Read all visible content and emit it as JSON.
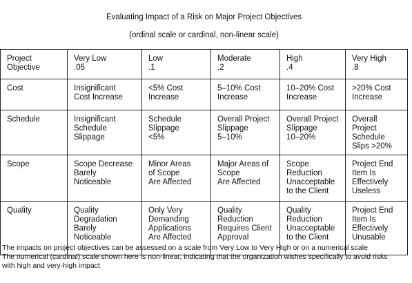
{
  "table": {
    "title": "Evaluating Impact of a Risk on Major Project Objectives",
    "subtitle": "(ordinal scale or cardinal, non-linear scale)",
    "header": [
      "Project\nObjective",
      "Very Low\n.05",
      "Low\n.1",
      "Moderate\n.2",
      "High\n.4",
      "Very High\n.8"
    ],
    "rows": [
      [
        "Cost",
        "Insignificant\nCost Increase",
        "<5% Cost\nIncrease",
        "5–10% Cost\nIncrease",
        "10–20% Cost\nIncrease",
        ">20% Cost\nIncrease"
      ],
      [
        "Schedule",
        "Insignificant\nSchedule\nSlippage",
        "Schedule\nSlippage\n<5%",
        "Overall Project\nSlippage\n5–10%",
        "Overall Project\nSlippage\n10–20%",
        "Overall\nProject\nSchedule\nSlips >20%"
      ],
      [
        "Scope",
        "Scope Decrease\nBarely\nNoticeable",
        "Minor Areas\nof Scope\nAre Affected",
        "Major Areas of\nScope\nAre Affected",
        "Scope\nReduction\nUnacceptable\nto the Client",
        "Project End\nItem Is\nEffectively\nUseless"
      ],
      [
        "Quality",
        "Quality\nDegradation\nBarely\nNoticeable",
        "Only Very\nDemanding\nApplications\nAre Affected",
        "Quality\nReduction\nRequires Client\nApproval",
        "Quality\nReduction\nUnacceptable\nto the Client",
        "Project End\nItem Is\nEffectively\nUnusable"
      ]
    ]
  },
  "footer": {
    "note": "The impacts on project objectives can be assessed on a scale from Very Low to Very  High or on a numerical scale",
    "explanation": "The numerical (cardinal) scale shown here is non-linear, indicating that the organization wishes specifically to avoid risks with high and very-high impact"
  }
}
